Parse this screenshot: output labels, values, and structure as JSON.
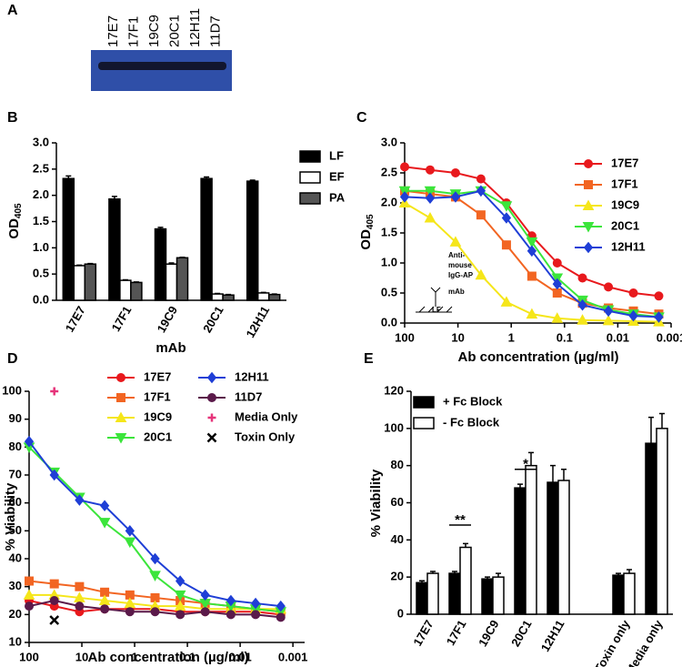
{
  "chart_data": [
    {
      "type": "blot",
      "panel_label": "A",
      "categories": [
        "17E7",
        "17F1",
        "19C9",
        "20C1",
        "12H11",
        "11D7"
      ],
      "color": "#2f4fa8"
    },
    {
      "type": "bar",
      "panel_label": "B",
      "xlabel": "mAb",
      "ylabel": "OD",
      "ylabel_sub": "405",
      "categories": [
        "17E7",
        "17F1",
        "19C9",
        "20C1",
        "12H11"
      ],
      "series": [
        {
          "name": "LF",
          "color": "#000000",
          "values": [
            2.32,
            1.93,
            1.36,
            2.32,
            2.27
          ],
          "errors": [
            0.05,
            0.05,
            0.03,
            0.03,
            0.02
          ]
        },
        {
          "name": "EF",
          "color": "#ffffff",
          "values": [
            0.66,
            0.38,
            0.69,
            0.12,
            0.14
          ],
          "errors": [
            0.01,
            0.01,
            0.02,
            0.01,
            0.01
          ]
        },
        {
          "name": "PA",
          "color": "#555555",
          "values": [
            0.69,
            0.34,
            0.81,
            0.1,
            0.11
          ],
          "errors": [
            0.01,
            0.01,
            0.01,
            0.01,
            0.01
          ]
        }
      ],
      "ylim": [
        0,
        3
      ],
      "yticks": [
        {
          "value": 0,
          "label": "0.0"
        },
        0.5,
        {
          "value": 1,
          "label": "1.0"
        },
        1.5,
        {
          "value": 2,
          "label": "2.0"
        },
        2.5,
        {
          "value": 3,
          "label": "3.0"
        }
      ]
    },
    {
      "type": "line",
      "panel_label": "C",
      "xlabel": "Ab concentration (µg/ml)",
      "ylabel": "OD",
      "ylabel_sub": "405",
      "log_x": true,
      "xlim": [
        100,
        0.001
      ],
      "xticks": [
        100,
        10,
        1,
        0.1,
        0.01,
        0.001
      ],
      "ylim": [
        0,
        3
      ],
      "yticks": [
        {
          "value": 0,
          "label": "0.0"
        },
        0.5,
        {
          "value": 1,
          "label": "1.0"
        },
        1.5,
        {
          "value": 2,
          "label": "2.0"
        },
        2.5,
        {
          "value": 3,
          "label": "3.0"
        }
      ],
      "annotations": [
        "Anti-",
        "mouse",
        "IgG-AP",
        "LF",
        "mAb"
      ],
      "series": [
        {
          "name": "17E7",
          "color": "#e8191d",
          "marker": "circle",
          "x": [
            100,
            33.3,
            11.1,
            3.7,
            1.23,
            0.41,
            0.137,
            0.046,
            0.015,
            0.0051,
            0.0017
          ],
          "values": [
            2.6,
            2.55,
            2.5,
            2.4,
            2.0,
            1.45,
            1.0,
            0.75,
            0.6,
            0.5,
            0.45
          ]
        },
        {
          "name": "17F1",
          "color": "#f26522",
          "marker": "square",
          "x": [
            100,
            33.3,
            11.1,
            3.7,
            1.23,
            0.41,
            0.137,
            0.046,
            0.015,
            0.0051,
            0.0017
          ],
          "values": [
            2.2,
            2.15,
            2.1,
            1.8,
            1.3,
            0.78,
            0.5,
            0.33,
            0.25,
            0.2,
            0.15
          ]
        },
        {
          "name": "19C9",
          "color": "#f5e61a",
          "marker": "triangle-up",
          "x": [
            100,
            33.3,
            11.1,
            3.7,
            1.23,
            0.41,
            0.137,
            0.046,
            0.015,
            0.0051,
            0.0017
          ],
          "values": [
            2.0,
            1.75,
            1.35,
            0.8,
            0.35,
            0.15,
            0.08,
            0.05,
            0.04,
            0.03,
            0.02
          ]
        },
        {
          "name": "20C1",
          "color": "#3be53b",
          "marker": "triangle-down",
          "x": [
            100,
            33.3,
            11.1,
            3.7,
            1.23,
            0.41,
            0.137,
            0.046,
            0.015,
            0.0051,
            0.0017
          ],
          "values": [
            2.2,
            2.2,
            2.15,
            2.2,
            1.95,
            1.35,
            0.75,
            0.38,
            0.22,
            0.15,
            0.1
          ]
        },
        {
          "name": "12H11",
          "color": "#1f3fd6",
          "marker": "diamond",
          "x": [
            100,
            33.3,
            11.1,
            3.7,
            1.23,
            0.41,
            0.137,
            0.046,
            0.015,
            0.0051,
            0.0017
          ],
          "values": [
            2.1,
            2.08,
            2.1,
            2.2,
            1.75,
            1.2,
            0.65,
            0.3,
            0.2,
            0.12,
            0.1
          ]
        }
      ]
    },
    {
      "type": "line",
      "panel_label": "D",
      "xlabel": "Ab concentration (µg/ml)",
      "ylabel": "% Viability",
      "log_x": true,
      "xlim": [
        100,
        0.0006
      ],
      "xticks": [
        100,
        10,
        1,
        0.1,
        0.01,
        0.001
      ],
      "ylim": [
        10,
        100
      ],
      "yticks": [
        10,
        20,
        30,
        40,
        50,
        60,
        70,
        80,
        90,
        100
      ],
      "series": [
        {
          "name": "17E7",
          "color": "#e8191d",
          "marker": "circle",
          "x": [
            100,
            33.3,
            11.1,
            3.7,
            1.23,
            0.41,
            0.137,
            0.046,
            0.015,
            0.0051,
            0.0017
          ],
          "values": [
            25,
            23,
            21,
            22,
            22,
            22,
            21,
            21,
            21,
            21,
            20
          ]
        },
        {
          "name": "17F1",
          "color": "#f26522",
          "marker": "square",
          "x": [
            100,
            33.3,
            11.1,
            3.7,
            1.23,
            0.41,
            0.137,
            0.046,
            0.015,
            0.0051,
            0.0017
          ],
          "values": [
            32,
            31,
            30,
            28,
            27,
            26,
            25,
            24,
            23,
            22,
            21
          ]
        },
        {
          "name": "19C9",
          "color": "#f5e61a",
          "marker": "triangle-up",
          "x": [
            100,
            33.3,
            11.1,
            3.7,
            1.23,
            0.41,
            0.137,
            0.046,
            0.015,
            0.0051,
            0.0017
          ],
          "values": [
            27,
            27,
            26,
            25,
            24,
            23,
            23,
            22,
            22,
            22,
            22
          ]
        },
        {
          "name": "20C1",
          "color": "#3be53b",
          "marker": "triangle-down",
          "x": [
            100,
            33.3,
            11.1,
            3.7,
            1.23,
            0.41,
            0.137,
            0.046,
            0.015,
            0.0051,
            0.0017
          ],
          "values": [
            80,
            71,
            62,
            53,
            46,
            34,
            27,
            24,
            23,
            22,
            21
          ]
        },
        {
          "name": "12H11",
          "color": "#1f3fd6",
          "marker": "diamond",
          "x": [
            100,
            33.3,
            11.1,
            3.7,
            1.23,
            0.41,
            0.137,
            0.046,
            0.015,
            0.0051,
            0.0017
          ],
          "values": [
            82,
            70,
            61,
            59,
            50,
            40,
            32,
            27,
            25,
            24,
            23
          ]
        },
        {
          "name": "11D7",
          "color": "#5b1a4a",
          "marker": "circle",
          "x": [
            100,
            33.3,
            11.1,
            3.7,
            1.23,
            0.41,
            0.137,
            0.046,
            0.015,
            0.0051,
            0.0017
          ],
          "values": [
            23,
            25,
            23,
            22,
            21,
            21,
            20,
            21,
            20,
            20,
            19
          ]
        },
        {
          "name": "Media Only",
          "color": "#e6347a",
          "marker": "plus",
          "line": false,
          "x": [
            33.3
          ],
          "values": [
            100
          ]
        },
        {
          "name": "Toxin Only",
          "color": "#000000",
          "marker": "x",
          "line": false,
          "x": [
            33.3
          ],
          "values": [
            18
          ]
        }
      ]
    },
    {
      "type": "bar",
      "panel_label": "E",
      "ylabel": "% Viability",
      "categories": [
        "17E7",
        "17F1",
        "19C9",
        "20C1",
        "12H11",
        null,
        "Toxin only",
        "Media only"
      ],
      "annotations": [
        "**",
        "*"
      ],
      "series": [
        {
          "name": "+ Fc Block",
          "color": "#000000",
          "values": [
            17,
            22,
            19,
            68,
            71,
            null,
            21,
            92
          ],
          "errors": [
            1,
            1,
            1,
            2,
            9,
            null,
            1,
            14
          ]
        },
        {
          "name": "- Fc Block",
          "color": "#ffffff",
          "values": [
            22,
            36,
            20,
            80,
            72,
            null,
            22,
            100
          ],
          "errors": [
            1,
            2,
            2,
            7,
            6,
            null,
            2,
            8
          ]
        }
      ],
      "ylim": [
        0,
        120
      ],
      "yticks": [
        0,
        20,
        40,
        60,
        80,
        100,
        120
      ]
    }
  ]
}
